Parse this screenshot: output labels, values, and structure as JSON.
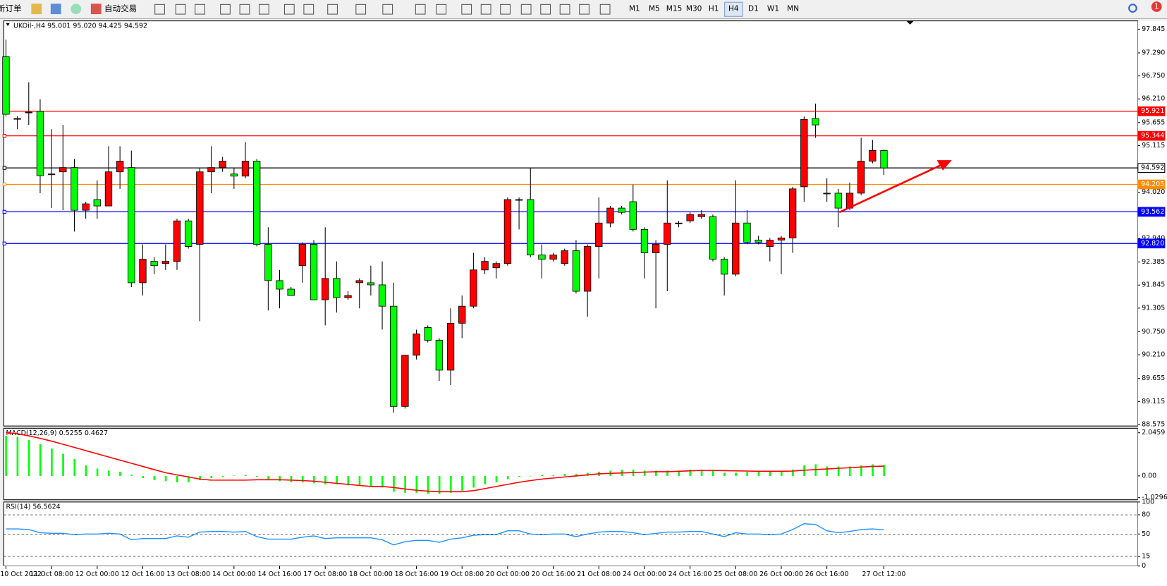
{
  "toolbar": {
    "new_order": "新订单",
    "auto_trading": "自动交易",
    "timeframes": [
      "M1",
      "M5",
      "M15",
      "M30",
      "H1",
      "H4",
      "D1",
      "W1",
      "MN"
    ],
    "notification": "1"
  },
  "chart_data": [
    {
      "type": "candlestick",
      "title": "UKOil-,H4 95.001 95.020 94.425 94.592",
      "x": [
        "10 Oct 2022",
        null,
        null,
        null,
        "11 Oct 08:00",
        null,
        null,
        null,
        "12 Oct 00:00",
        null,
        null,
        null,
        "12 Oct 16:00",
        null,
        null,
        null,
        "13 Oct 08:00",
        null,
        null,
        null,
        "14 Oct 00:00",
        null,
        null,
        null,
        "14 Oct 16:00",
        null,
        null,
        null,
        "17 Oct 08:00",
        null,
        null,
        null,
        "18 Oct 00:00",
        null,
        null,
        null,
        "18 Oct 16:00",
        null,
        null,
        null,
        "19 Oct 08:00",
        null,
        null,
        null,
        "20 Oct 00:00",
        null,
        null,
        null,
        "20 Oct 16:00",
        null,
        null,
        null,
        "21 Oct 08:00",
        null,
        null,
        null,
        "24 Oct 00:00",
        null,
        null,
        null,
        "24 Oct 16:00",
        null,
        null,
        null,
        "25 Oct 08:00",
        null,
        null,
        null,
        "26 Oct 00:00",
        null,
        null,
        null,
        "26 Oct 16:00",
        null,
        null,
        null,
        null,
        "27 Oct 12:00"
      ],
      "open": [
        97.2,
        95.75,
        95.9,
        95.92,
        94.45,
        94.5,
        94.6,
        93.6,
        93.85,
        93.7,
        94.5,
        94.6,
        91.9,
        92.4,
        92.35,
        92.4,
        93.35,
        92.8,
        94.5,
        94.6,
        94.45,
        94.4,
        94.75,
        92.8,
        91.95,
        91.75,
        92.3,
        92.8,
        91.5,
        92.0,
        91.55,
        91.9,
        91.9,
        91.85,
        91.35,
        89.0,
        90.2,
        90.85,
        90.55,
        89.85,
        90.95,
        91.35,
        92.2,
        92.25,
        92.35,
        93.85,
        93.85,
        92.55,
        92.45,
        92.35,
        92.65,
        91.7,
        92.75,
        93.3,
        93.65,
        93.8,
        93.15,
        92.6,
        92.8,
        93.3,
        93.35,
        93.45,
        93.45,
        92.45,
        92.1,
        93.3,
        92.9,
        92.75,
        92.9,
        92.95,
        94.15,
        95.75,
        94.0,
        94.0,
        93.65,
        94.0,
        94.75,
        95.001
      ],
      "high": [
        97.6,
        95.8,
        96.6,
        96.2,
        95.5,
        95.6,
        94.8,
        93.8,
        94.3,
        95.1,
        95.1,
        95.0,
        92.8,
        92.5,
        92.8,
        93.4,
        93.4,
        94.6,
        95.1,
        94.85,
        94.6,
        95.2,
        94.8,
        93.2,
        92.2,
        91.8,
        92.85,
        92.9,
        93.2,
        92.4,
        91.7,
        92.0,
        92.3,
        92.4,
        91.9,
        90.2,
        90.8,
        90.9,
        90.6,
        91.3,
        91.6,
        92.6,
        92.5,
        92.4,
        93.9,
        93.9,
        94.6,
        92.8,
        92.6,
        92.7,
        92.9,
        92.8,
        93.9,
        93.7,
        93.7,
        94.2,
        93.2,
        92.9,
        94.3,
        93.35,
        93.55,
        93.6,
        93.5,
        92.5,
        94.3,
        93.6,
        93.0,
        92.95,
        93.0,
        94.15,
        95.8,
        96.1,
        94.35,
        94.1,
        94.25,
        95.3,
        95.25,
        95.02
      ],
      "low": [
        95.8,
        95.5,
        95.6,
        94.0,
        93.65,
        93.6,
        93.1,
        93.4,
        93.4,
        93.7,
        94.1,
        91.8,
        91.6,
        92.1,
        92.2,
        92.2,
        92.7,
        91.0,
        94.0,
        94.5,
        94.1,
        94.35,
        92.75,
        91.25,
        91.3,
        91.6,
        91.9,
        91.5,
        90.9,
        91.2,
        91.5,
        91.3,
        91.6,
        90.8,
        88.85,
        88.95,
        90.1,
        90.5,
        89.6,
        89.5,
        90.6,
        91.3,
        92.1,
        92.0,
        92.3,
        93.15,
        92.5,
        92.0,
        92.4,
        92.3,
        91.65,
        91.1,
        92.0,
        93.2,
        93.5,
        93.1,
        92.0,
        91.3,
        91.7,
        93.2,
        93.3,
        93.4,
        92.4,
        91.6,
        92.05,
        92.8,
        92.8,
        92.4,
        92.1,
        92.6,
        93.8,
        95.3,
        93.8,
        93.2,
        93.6,
        93.95,
        94.7,
        94.425
      ],
      "close": [
        95.85,
        95.75,
        95.9,
        94.41,
        94.45,
        94.6,
        93.6,
        93.75,
        93.7,
        94.5,
        94.75,
        91.9,
        92.45,
        92.3,
        92.4,
        93.35,
        92.75,
        94.5,
        94.6,
        94.75,
        94.4,
        94.75,
        92.8,
        91.95,
        91.75,
        91.6,
        92.8,
        91.5,
        92.0,
        91.55,
        91.6,
        91.95,
        91.85,
        91.35,
        89.0,
        90.2,
        90.7,
        90.55,
        89.85,
        90.95,
        91.35,
        92.2,
        92.4,
        92.35,
        93.85,
        93.85,
        92.55,
        92.45,
        92.55,
        92.65,
        91.7,
        92.75,
        93.3,
        93.65,
        93.55,
        93.15,
        92.6,
        92.8,
        93.3,
        93.3,
        93.5,
        93.5,
        92.45,
        92.1,
        93.3,
        92.85,
        92.85,
        92.9,
        92.95,
        94.1,
        95.73,
        95.6,
        94.0,
        93.65,
        94.0,
        94.75,
        95.0,
        94.592
      ],
      "colors": {
        "up": "#ff0000",
        "down": "#00ff00"
      },
      "ylim": [
        88.54,
        98.04
      ],
      "yticks": [
        97.845,
        {
          "value": 97.29,
          "label": "97.290"
        },
        {
          "value": 96.75,
          "label": "96.750"
        },
        {
          "value": 96.21,
          "label": "96.210"
        },
        95.655,
        95.115,
        {
          "value": 94.02,
          "label": "94.020"
        },
        {
          "value": 92.94,
          "label": "92.940"
        },
        92.385,
        91.845,
        91.305,
        {
          "value": 90.75,
          "label": "90.750"
        },
        {
          "value": 90.21,
          "label": "90.210"
        },
        89.655,
        89.115,
        88.575
      ],
      "levels": [
        {
          "value": 95.921,
          "color": "#ff0000"
        },
        {
          "value": 95.344,
          "color": "#ff0000"
        },
        {
          "value": 94.592,
          "color": "#000000"
        },
        {
          "value": 94.205,
          "color": "#ff8c00"
        },
        {
          "value": 93.562,
          "color": "#0000ff"
        },
        {
          "value": 92.82,
          "label": "92.820",
          "color": "#0000ff"
        }
      ]
    },
    {
      "type": "macd",
      "title": "MACD(12,26,9) 0.5255 0.4627",
      "histogram": {
        "color": "#00ff00",
        "values": [
          1.9,
          1.85,
          1.7,
          1.5,
          1.3,
          1.05,
          0.8,
          0.5,
          0.35,
          0.25,
          0.2,
          0.05,
          -0.1,
          -0.2,
          -0.25,
          -0.3,
          -0.3,
          -0.2,
          -0.1,
          -0.05,
          0.02,
          0.05,
          -0.05,
          -0.15,
          -0.25,
          -0.3,
          -0.3,
          -0.35,
          -0.4,
          -0.4,
          -0.45,
          -0.45,
          -0.5,
          -0.55,
          -0.75,
          -0.8,
          -0.8,
          -0.85,
          -0.85,
          -0.8,
          -0.7,
          -0.55,
          -0.4,
          -0.3,
          -0.15,
          -0.05,
          0.0,
          0.05,
          0.05,
          0.1,
          0.1,
          0.15,
          0.2,
          0.25,
          0.3,
          0.3,
          0.25,
          0.25,
          0.25,
          0.25,
          0.3,
          0.3,
          0.25,
          0.15,
          0.15,
          0.2,
          0.2,
          0.2,
          0.2,
          0.3,
          0.5,
          0.55,
          0.45,
          0.45,
          0.45,
          0.5,
          0.55,
          0.5255
        ]
      },
      "signal": {
        "color": "#ff0000",
        "values": [
          2.05,
          2.0,
          1.9,
          1.78,
          1.65,
          1.5,
          1.35,
          1.2,
          1.05,
          0.9,
          0.75,
          0.6,
          0.45,
          0.3,
          0.15,
          0.05,
          -0.05,
          -0.15,
          -0.2,
          -0.2,
          -0.2,
          -0.2,
          -0.18,
          -0.18,
          -0.18,
          -0.2,
          -0.22,
          -0.25,
          -0.3,
          -0.35,
          -0.4,
          -0.45,
          -0.5,
          -0.5,
          -0.55,
          -0.62,
          -0.68,
          -0.72,
          -0.75,
          -0.75,
          -0.75,
          -0.7,
          -0.6,
          -0.5,
          -0.4,
          -0.3,
          -0.22,
          -0.15,
          -0.1,
          -0.05,
          0.0,
          0.05,
          0.1,
          0.12,
          0.14,
          0.16,
          0.18,
          0.2,
          0.2,
          0.22,
          0.24,
          0.26,
          0.26,
          0.25,
          0.24,
          0.23,
          0.22,
          0.22,
          0.22,
          0.23,
          0.27,
          0.3,
          0.33,
          0.36,
          0.39,
          0.42,
          0.45,
          0.4627
        ]
      },
      "ylim": [
        -1.13,
        2.26
      ],
      "yticks": [
        2.0459,
        {
          "value": 0,
          "label": "0.00"
        },
        -1.0296
      ],
      "grid": false
    },
    {
      "type": "line",
      "title": "RSI(14) 56.5624",
      "color": "#1e90ff",
      "values": [
        58,
        58,
        57,
        52,
        51,
        51,
        49,
        50,
        50,
        51,
        50,
        41,
        43,
        43,
        43,
        47,
        45,
        53,
        54,
        54,
        53,
        54,
        46,
        42,
        42,
        42,
        45,
        47,
        43,
        44,
        44,
        44,
        44,
        41,
        33,
        38,
        40,
        40,
        37,
        42,
        44,
        48,
        49,
        49,
        55,
        55,
        50,
        49,
        50,
        50,
        46,
        50,
        53,
        54,
        54,
        52,
        49,
        51,
        53,
        53,
        54,
        54,
        50,
        46,
        52,
        50,
        50,
        49,
        50,
        57,
        66,
        65,
        55,
        52,
        54,
        57,
        58,
        56.5624
      ],
      "ylim": [
        0,
        100
      ],
      "yticks": [
        100,
        80,
        50,
        15,
        0
      ],
      "grid": true
    }
  ]
}
